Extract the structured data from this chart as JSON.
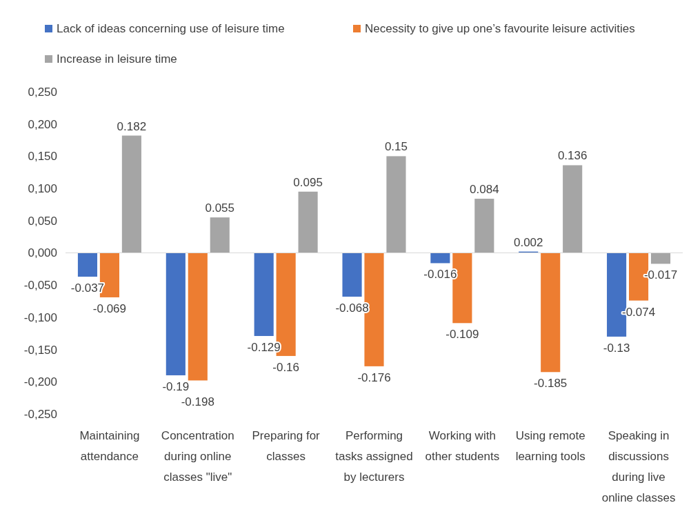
{
  "chart_data": {
    "type": "bar",
    "categories": [
      "Maintaining attendance",
      "Concentration during online classes \"live\"",
      "Preparing for classes",
      "Performing tasks assigned by lecturers",
      "Working with other students",
      "Using remote learning tools",
      "Speaking in discussions during live online classes"
    ],
    "series": [
      {
        "name": "Lack of ideas concerning use of leisure time",
        "color": "#4472c4",
        "values": [
          -0.037,
          -0.19,
          -0.129,
          -0.068,
          -0.016,
          0.002,
          -0.13
        ]
      },
      {
        "name": "Necessity to give up one’s favourite leisure activities",
        "color": "#ed7d31",
        "values": [
          -0.069,
          -0.198,
          -0.16,
          -0.176,
          -0.109,
          -0.185,
          -0.074
        ]
      },
      {
        "name": "Increase in leisure time",
        "color": "#a5a5a5",
        "values": [
          0.182,
          0.055,
          0.095,
          0.15,
          0.084,
          0.136,
          -0.017
        ]
      }
    ],
    "ylim": [
      -0.25,
      0.25
    ],
    "yticks": [
      {
        "value": -0.25,
        "label": "-0,250"
      },
      {
        "value": -0.2,
        "label": "-0,200"
      },
      {
        "value": -0.15,
        "label": "-0,150"
      },
      {
        "value": -0.1,
        "label": "-0,100"
      },
      {
        "value": -0.05,
        "label": "-0,050"
      },
      {
        "value": 0,
        "label": "0,000"
      },
      {
        "value": 0.05,
        "label": "0,050"
      },
      {
        "value": 0.1,
        "label": "0,100"
      },
      {
        "value": 0.15,
        "label": "0,150"
      },
      {
        "value": 0.2,
        "label": "0,200"
      },
      {
        "value": 0.25,
        "label": "0,250"
      }
    ],
    "grid": false,
    "legend": "top",
    "data_labels": true
  }
}
